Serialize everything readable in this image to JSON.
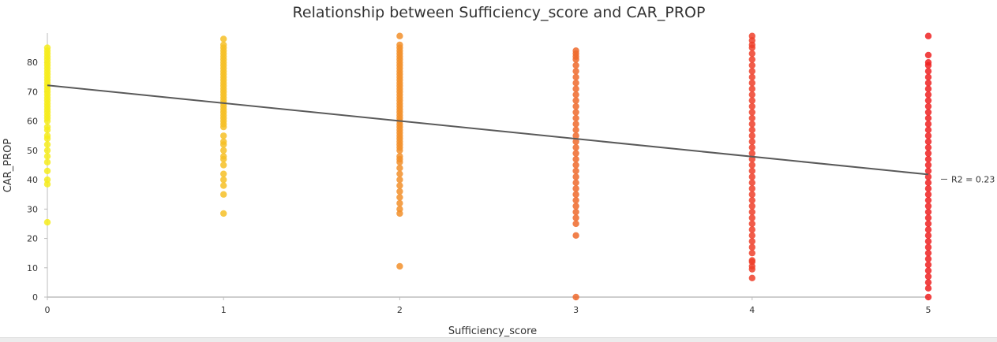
{
  "chart_data": {
    "type": "scatter",
    "title": "Relationship between Sufficiency_score and CAR_PROP",
    "xlabel": "Sufficiency_score",
    "ylabel": "CAR_PROP",
    "xlim": [
      0,
      5
    ],
    "ylim": [
      0,
      90
    ],
    "x_ticks": [
      "0",
      "1",
      "2",
      "3",
      "4",
      "5"
    ],
    "y_ticks": [
      "0",
      "10",
      "20",
      "30",
      "40",
      "50",
      "60",
      "70",
      "80"
    ],
    "grid": false,
    "trendline": {
      "type": "linear",
      "x": [
        0,
        5
      ],
      "y": [
        72.2,
        41.8
      ],
      "label": "R2 = 0.23"
    },
    "point_colors": [
      "#f6ec1c",
      "#f6c026",
      "#f28f2a",
      "#ef6a2c",
      "#ee3f2a",
      "#ee2222"
    ],
    "groups": [
      {
        "x": 0,
        "y": [
          25.5,
          38.5,
          40,
          43,
          46,
          48,
          50,
          52,
          54,
          55,
          57,
          58,
          60,
          61,
          62,
          63,
          64,
          65,
          66,
          67,
          68,
          69,
          70,
          71,
          72,
          73,
          74,
          75,
          76,
          77,
          78,
          79,
          80,
          81,
          82,
          83,
          84,
          85
        ]
      },
      {
        "x": 1,
        "y": [
          28.5,
          35,
          38,
          40,
          42,
          45,
          47,
          48,
          50,
          52,
          53,
          55,
          58,
          59,
          60,
          61,
          62,
          63,
          64,
          65,
          66,
          67,
          68,
          69,
          70,
          71,
          72,
          73,
          74,
          75,
          76,
          77,
          78,
          79,
          80,
          81,
          82,
          83,
          84,
          85,
          86,
          88
        ]
      },
      {
        "x": 2,
        "y": [
          10.5,
          28.5,
          30,
          32,
          34,
          36,
          38,
          40,
          42,
          44,
          46,
          47,
          48,
          50,
          51,
          52,
          53,
          54,
          55,
          56,
          57,
          58,
          59,
          60,
          61,
          62,
          63,
          64,
          65,
          66,
          67,
          68,
          69,
          70,
          71,
          72,
          73,
          74,
          75,
          76,
          77,
          78,
          79,
          80,
          81,
          82,
          83,
          84,
          85,
          86,
          89
        ]
      },
      {
        "x": 3,
        "y": [
          0,
          21,
          25,
          27,
          29,
          31,
          33,
          35,
          37,
          39,
          41,
          43,
          45,
          47,
          49,
          51,
          53,
          55,
          57,
          59,
          61,
          63,
          65,
          67,
          69,
          71,
          73,
          75,
          77,
          79,
          81,
          82,
          83,
          84
        ]
      },
      {
        "x": 4,
        "y": [
          6.5,
          9.5,
          10.5,
          12,
          12.5,
          15,
          17,
          19,
          21,
          23,
          25,
          27,
          29,
          31,
          33,
          35,
          37,
          39,
          41,
          43,
          45,
          47,
          49,
          51,
          53,
          55,
          57,
          59,
          61,
          63,
          65,
          67,
          69,
          71,
          73,
          75,
          77,
          79,
          81,
          83,
          85,
          86,
          87.5,
          89
        ]
      },
      {
        "x": 5,
        "y": [
          0,
          3,
          5,
          7,
          9,
          11,
          13,
          15,
          17,
          19,
          21,
          23,
          25,
          27,
          29,
          31,
          33,
          35,
          37,
          39,
          41,
          43,
          45,
          47,
          49,
          51,
          53,
          55,
          57,
          59,
          61,
          63,
          65,
          67,
          69,
          71,
          73,
          75,
          77,
          79,
          80,
          82.5,
          89
        ]
      }
    ]
  }
}
